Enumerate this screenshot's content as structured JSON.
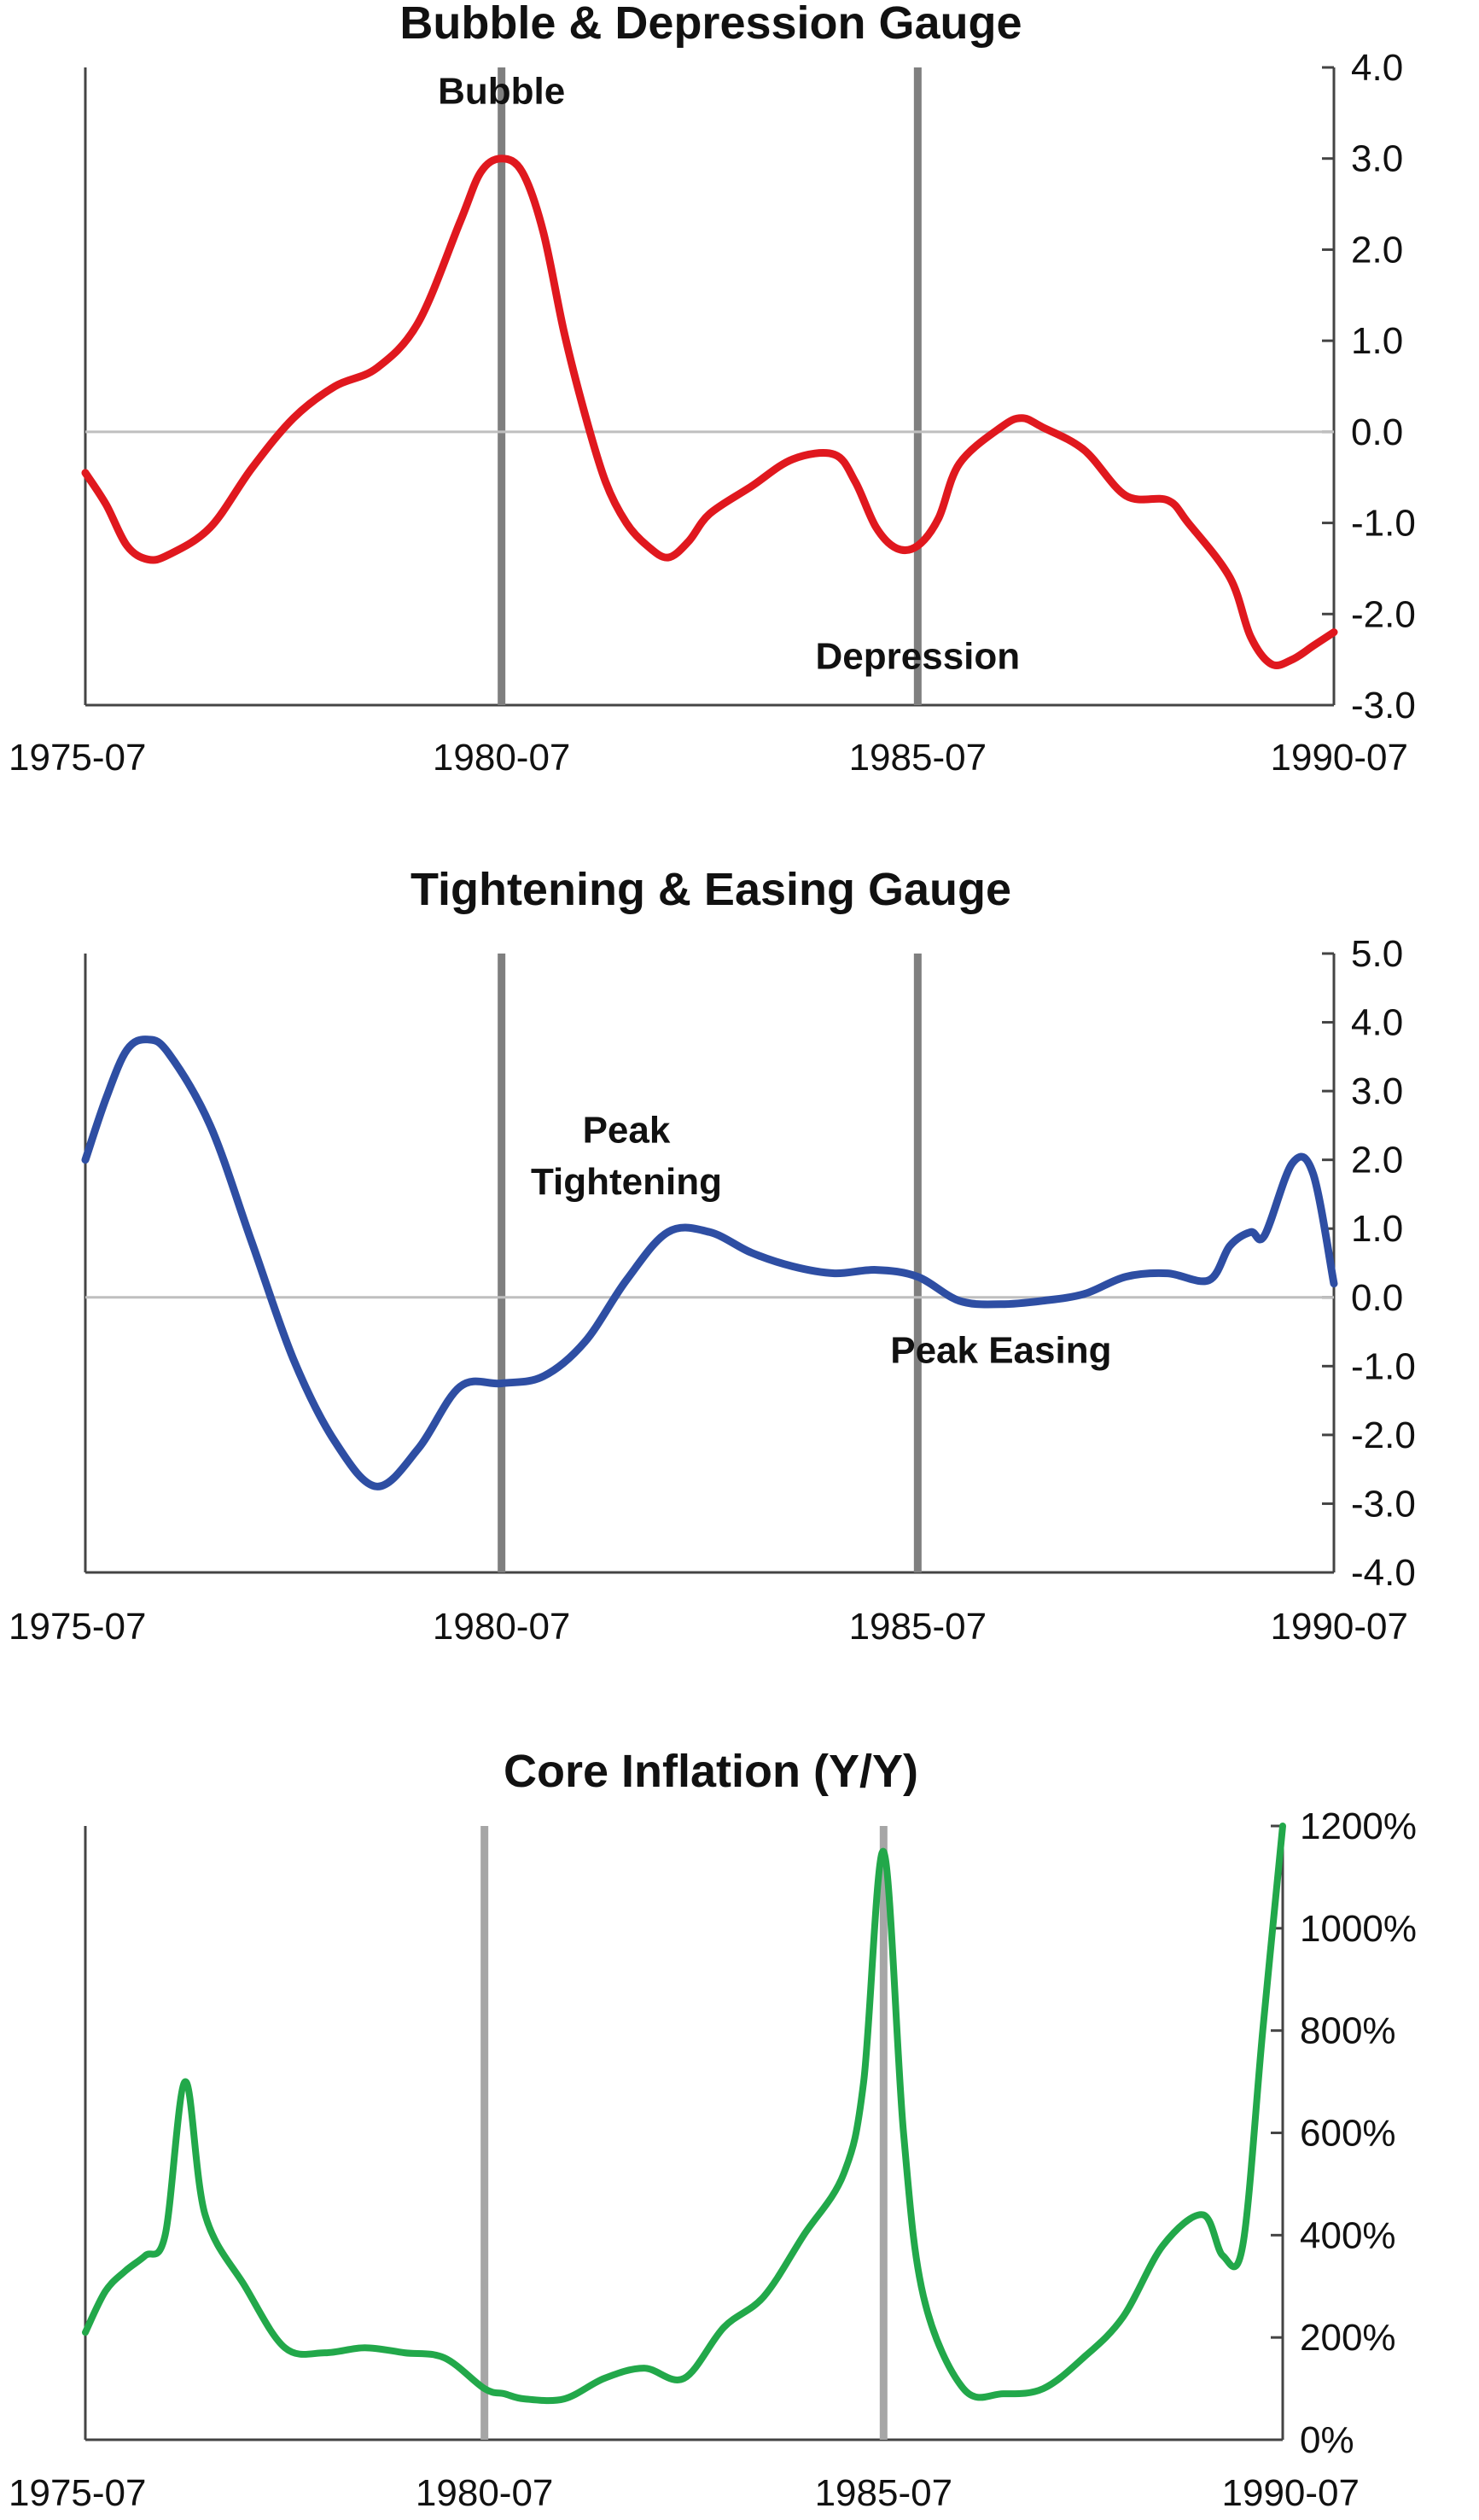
{
  "chart_data": [
    {
      "type": "line",
      "title": "Bubble & Depression Gauge",
      "x_range": [
        "1975-07",
        "1990-07"
      ],
      "x_ticks": [
        "1975-07",
        "1980-07",
        "1985-07",
        "1990-07"
      ],
      "y_ticks": [
        "4.0",
        "3.0",
        "2.0",
        "1.0",
        "0.0",
        "-1.0",
        "-2.0",
        "-3.0"
      ],
      "ylim": [
        -3.0,
        4.0
      ],
      "y_axis_side": "right",
      "vertical_markers": [
        "1980-07",
        "1985-07"
      ],
      "annotations": [
        {
          "text": "Bubble",
          "x": "1980-07",
          "y": 3.6
        },
        {
          "text": "Depression",
          "x": "1985-07",
          "y": -2.6
        }
      ],
      "series": [
        {
          "color": "#e0181e",
          "points": [
            [
              "1975-07",
              -0.45
            ],
            [
              "1975-10",
              -0.8
            ],
            [
              "1976-01",
              -1.25
            ],
            [
              "1976-04",
              -1.4
            ],
            [
              "1976-07",
              -1.35
            ],
            [
              "1977-01",
              -1.05
            ],
            [
              "1977-07",
              -0.4
            ],
            [
              "1978-01",
              0.15
            ],
            [
              "1978-07",
              0.5
            ],
            [
              "1979-01",
              0.7
            ],
            [
              "1979-07",
              1.2
            ],
            [
              "1980-01",
              2.3
            ],
            [
              "1980-04",
              2.85
            ],
            [
              "1980-07",
              3.0
            ],
            [
              "1980-10",
              2.85
            ],
            [
              "1981-01",
              2.2
            ],
            [
              "1981-04",
              1.1
            ],
            [
              "1981-07",
              0.2
            ],
            [
              "1981-10",
              -0.55
            ],
            [
              "1982-01",
              -1.0
            ],
            [
              "1982-04",
              -1.25
            ],
            [
              "1982-07",
              -1.38
            ],
            [
              "1982-10",
              -1.2
            ],
            [
              "1983-01",
              -0.9
            ],
            [
              "1983-07",
              -0.6
            ],
            [
              "1984-01",
              -0.3
            ],
            [
              "1984-07",
              -0.25
            ],
            [
              "1984-10",
              -0.55
            ],
            [
              "1985-01",
              -1.05
            ],
            [
              "1985-04",
              -1.28
            ],
            [
              "1985-07",
              -1.25
            ],
            [
              "1985-10",
              -0.95
            ],
            [
              "1986-01",
              -0.35
            ],
            [
              "1986-07",
              0.05
            ],
            [
              "1986-10",
              0.15
            ],
            [
              "1987-01",
              0.05
            ],
            [
              "1987-07",
              -0.2
            ],
            [
              "1988-01",
              -0.7
            ],
            [
              "1988-07",
              -0.75
            ],
            [
              "1988-10",
              -1.0
            ],
            [
              "1989-04",
              -1.6
            ],
            [
              "1989-07",
              -2.25
            ],
            [
              "1989-10",
              -2.55
            ],
            [
              "1990-01",
              -2.5
            ],
            [
              "1990-04",
              -2.35
            ],
            [
              "1990-07",
              -2.2
            ]
          ]
        }
      ]
    },
    {
      "type": "line",
      "title": "Tightening & Easing Gauge",
      "x_range": [
        "1975-07",
        "1990-07"
      ],
      "x_ticks": [
        "1975-07",
        "1980-07",
        "1985-07",
        "1990-07"
      ],
      "y_ticks": [
        "5.0",
        "4.0",
        "3.0",
        "2.0",
        "1.0",
        "0.0",
        "-1.0",
        "-2.0",
        "-3.0",
        "-4.0"
      ],
      "ylim": [
        -4.0,
        5.0
      ],
      "y_axis_side": "right",
      "vertical_markers": [
        "1980-07",
        "1985-07"
      ],
      "annotations": [
        {
          "text": "Peak",
          "x": "1982-01",
          "y": 2.25
        },
        {
          "text": "Tightening",
          "x": "1982-01",
          "y": 1.5
        },
        {
          "text": "Peak Easing",
          "x": "1986-07",
          "y": -0.95
        }
      ],
      "series": [
        {
          "color": "#2e4ea3",
          "points": [
            [
              "1975-07",
              2.0
            ],
            [
              "1975-10",
              2.9
            ],
            [
              "1976-01",
              3.6
            ],
            [
              "1976-04",
              3.75
            ],
            [
              "1976-07",
              3.55
            ],
            [
              "1977-01",
              2.5
            ],
            [
              "1977-07",
              0.8
            ],
            [
              "1978-01",
              -0.9
            ],
            [
              "1978-07",
              -2.1
            ],
            [
              "1979-01",
              -2.75
            ],
            [
              "1979-07",
              -2.2
            ],
            [
              "1980-01",
              -1.3
            ],
            [
              "1980-07",
              -1.25
            ],
            [
              "1981-01",
              -1.15
            ],
            [
              "1981-07",
              -0.65
            ],
            [
              "1982-01",
              0.25
            ],
            [
              "1982-07",
              0.95
            ],
            [
              "1983-01",
              0.95
            ],
            [
              "1983-07",
              0.65
            ],
            [
              "1984-01",
              0.45
            ],
            [
              "1984-07",
              0.35
            ],
            [
              "1985-01",
              0.4
            ],
            [
              "1985-07",
              0.3
            ],
            [
              "1986-01",
              -0.05
            ],
            [
              "1986-07",
              -0.1
            ],
            [
              "1987-01",
              -0.05
            ],
            [
              "1987-07",
              0.05
            ],
            [
              "1988-01",
              0.3
            ],
            [
              "1988-07",
              0.35
            ],
            [
              "1989-01",
              0.25
            ],
            [
              "1989-04",
              0.75
            ],
            [
              "1989-07",
              0.95
            ],
            [
              "1989-09",
              0.9
            ],
            [
              "1990-01",
              1.95
            ],
            [
              "1990-04",
              1.8
            ],
            [
              "1990-07",
              0.2
            ]
          ]
        }
      ]
    },
    {
      "type": "line",
      "title": "Core Inflation (Y/Y)",
      "x_range": [
        "1975-07",
        "1990-07"
      ],
      "x_ticks": [
        "1975-07",
        "1980-07",
        "1985-07",
        "1990-07"
      ],
      "y_ticks": [
        "1200%",
        "1000%",
        "800%",
        "600%",
        "400%",
        "200%",
        "0%"
      ],
      "ylim": [
        0,
        1200
      ],
      "y_axis_side": "right",
      "vertical_markers": [
        "1980-07",
        "1985-07"
      ],
      "series": [
        {
          "color": "#22a84a",
          "points": [
            [
              "1975-07",
              210
            ],
            [
              "1975-10",
              290
            ],
            [
              "1976-01",
              330
            ],
            [
              "1976-04",
              360
            ],
            [
              "1976-07",
              400
            ],
            [
              "1976-10",
              700
            ],
            [
              "1977-01",
              440
            ],
            [
              "1977-07",
              300
            ],
            [
              "1978-01",
              180
            ],
            [
              "1978-07",
              170
            ],
            [
              "1979-01",
              180
            ],
            [
              "1979-07",
              170
            ],
            [
              "1980-01",
              160
            ],
            [
              "1980-07",
              100
            ],
            [
              "1980-10",
              90
            ],
            [
              "1981-01",
              80
            ],
            [
              "1981-07",
              80
            ],
            [
              "1982-01",
              120
            ],
            [
              "1982-07",
              140
            ],
            [
              "1983-01",
              120
            ],
            [
              "1983-07",
              220
            ],
            [
              "1984-01",
              280
            ],
            [
              "1984-07",
              400
            ],
            [
              "1985-01",
              520
            ],
            [
              "1985-04",
              700
            ],
            [
              "1985-07",
              1150
            ],
            [
              "1985-10",
              600
            ],
            [
              "1986-01",
              280
            ],
            [
              "1986-07",
              100
            ],
            [
              "1987-01",
              90
            ],
            [
              "1987-07",
              100
            ],
            [
              "1988-01",
              160
            ],
            [
              "1988-07",
              240
            ],
            [
              "1989-01",
              380
            ],
            [
              "1989-07",
              440
            ],
            [
              "1989-10",
              360
            ],
            [
              "1990-01",
              380
            ],
            [
              "1990-04",
              800
            ],
            [
              "1990-07",
              1200
            ]
          ]
        }
      ]
    }
  ]
}
